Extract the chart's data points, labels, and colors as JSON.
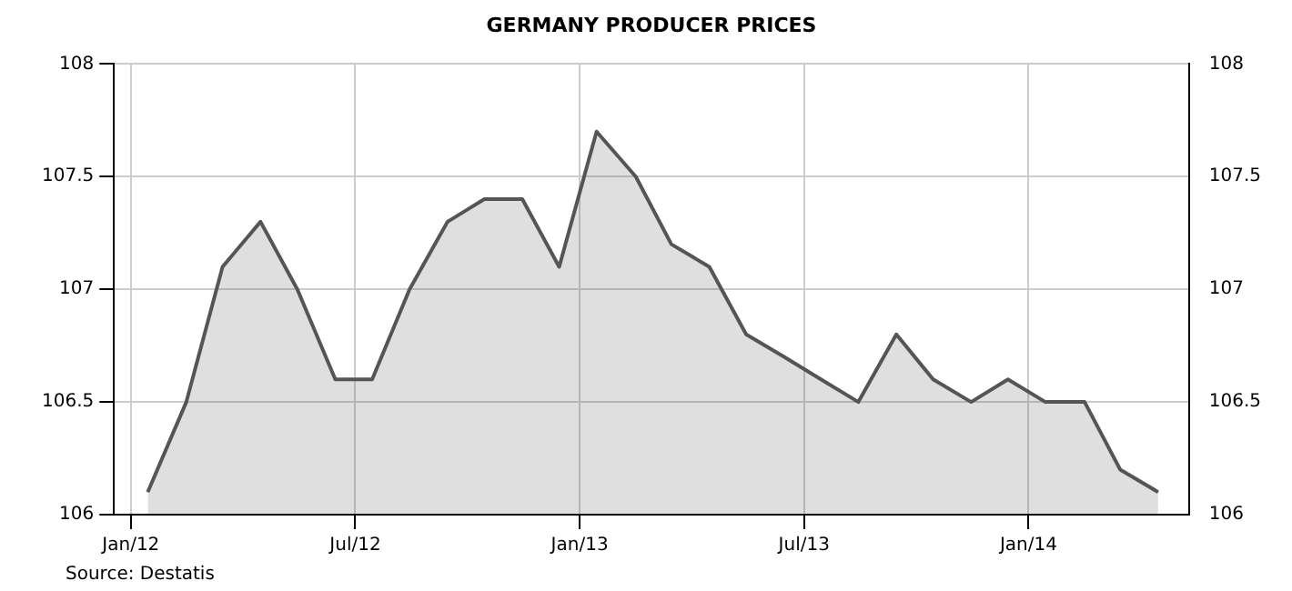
{
  "chart_data": {
    "type": "area",
    "title": "GERMANY PRODUCER PRICES",
    "x": [
      "2012-01-15",
      "2012-02-15",
      "2012-03-15",
      "2012-04-15",
      "2012-05-15",
      "2012-06-15",
      "2012-07-15",
      "2012-08-15",
      "2012-09-15",
      "2012-10-15",
      "2012-11-15",
      "2012-12-15",
      "2013-01-15",
      "2013-02-15",
      "2013-03-15",
      "2013-04-15",
      "2013-05-15",
      "2013-06-15",
      "2013-07-15",
      "2013-08-15",
      "2013-09-15",
      "2013-10-15",
      "2013-11-15",
      "2013-12-15",
      "2014-01-15",
      "2014-02-15",
      "2014-03-15",
      "2014-04-15"
    ],
    "series": [
      {
        "color": "#555555",
        "values": [
          106.1,
          106.5,
          107.1,
          107.3,
          107.0,
          106.6,
          106.6,
          107.0,
          107.3,
          107.4,
          107.4,
          107.1,
          107.7,
          107.5,
          107.2,
          107.1,
          106.8,
          106.7,
          106.6,
          106.5,
          106.8,
          106.6,
          106.5,
          106.6,
          106.5,
          106.5,
          106.2,
          106.1
        ]
      }
    ],
    "xlim": [
      "2011-12-18",
      "2014-05-10"
    ],
    "xticks": [
      {
        "value": "2012-01-01",
        "label": "Jan/12"
      },
      {
        "value": "2012-07-01",
        "label": "Jul/12"
      },
      {
        "value": "2013-01-01",
        "label": "Jan/13"
      },
      {
        "value": "2013-07-01",
        "label": "Jul/13"
      },
      {
        "value": "2014-01-01",
        "label": "Jan/14"
      }
    ],
    "ylim": [
      106,
      108
    ],
    "yticks": [
      106,
      106.5,
      107,
      107.5,
      108
    ],
    "y2lim": [
      106,
      108
    ],
    "y2ticks": [
      106,
      106.5,
      107,
      107.5,
      108
    ],
    "grid": true,
    "legend": false,
    "annotations": [
      "Source: Destatis"
    ]
  }
}
